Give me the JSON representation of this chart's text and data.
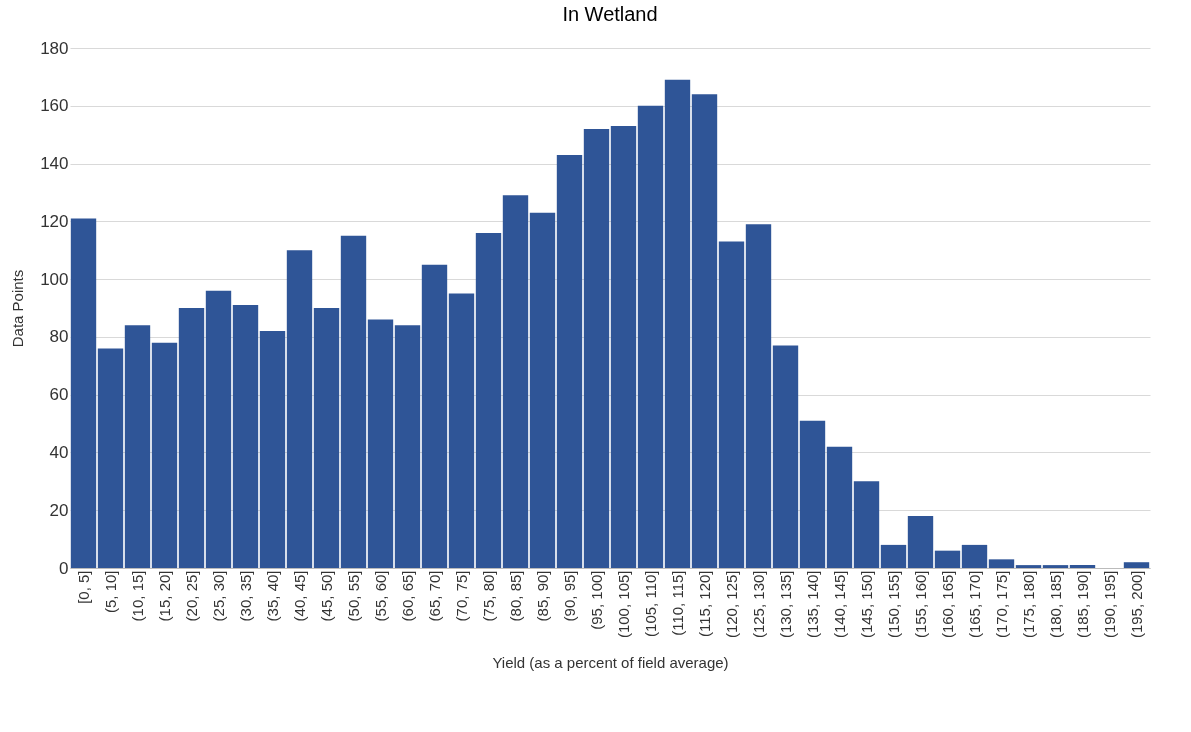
{
  "chart_data": {
    "type": "bar",
    "title": "In Wetland",
    "xlabel": "Yield (as a percent of field average)",
    "ylabel": "Data Points",
    "categories": [
      "[0, 5]",
      "(5, 10]",
      "(10, 15]",
      "(15, 20]",
      "(20, 25]",
      "(25, 30]",
      "(30, 35]",
      "(35, 40]",
      "(40, 45]",
      "(45, 50]",
      "(50, 55]",
      "(55, 60]",
      "(60, 65]",
      "(65, 70]",
      "(70, 75]",
      "(75, 80]",
      "(80, 85]",
      "(85, 90]",
      "(90, 95]",
      "(95, 100]",
      "(100, 105]",
      "(105, 110]",
      "(110, 115]",
      "(115, 120]",
      "(120, 125]",
      "(125, 130]",
      "(130, 135]",
      "(135, 140]",
      "(140, 145]",
      "(145, 150]",
      "(150, 155]",
      "(155, 160]",
      "(160, 165]",
      "(165, 170]",
      "(170, 175]",
      "(175, 180]",
      "(180, 185]",
      "(185, 190]",
      "(190, 195]",
      "(195, 200]"
    ],
    "values": [
      121,
      76,
      84,
      78,
      90,
      96,
      91,
      82,
      110,
      90,
      115,
      86,
      84,
      105,
      95,
      116,
      129,
      123,
      143,
      152,
      153,
      160,
      169,
      164,
      113,
      119,
      77,
      51,
      42,
      30,
      8,
      18,
      6,
      8,
      3,
      1,
      1,
      1,
      0,
      2
    ],
    "color": "#2f5597",
    "ylim": [
      0,
      180
    ],
    "yticks": [
      0,
      20,
      40,
      60,
      80,
      100,
      120,
      140,
      160,
      180
    ],
    "grid": "y"
  }
}
